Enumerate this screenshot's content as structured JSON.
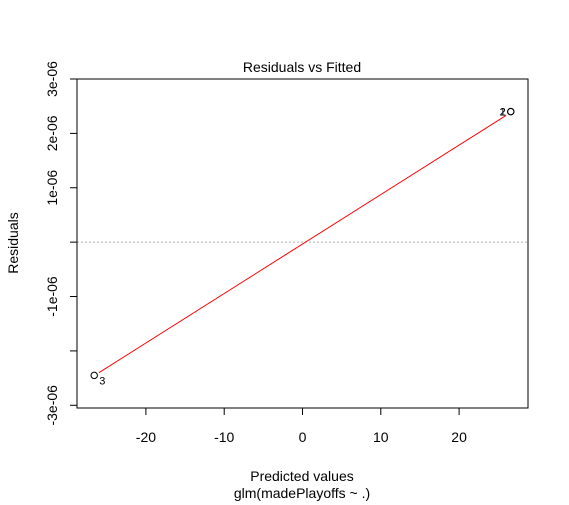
{
  "chart_data": {
    "type": "scatter",
    "title": "Residuals vs Fitted",
    "xlabel": "Predicted values",
    "subtitle": "glm(madePlayoffs ~ .)",
    "ylabel": "Residuals",
    "xlim": [
      -28.8,
      28.8
    ],
    "ylim": [
      -3.05e-06,
      3e-06
    ],
    "x_ticks": [
      -20,
      -10,
      0,
      10,
      20
    ],
    "x_tick_labels": [
      "-20",
      "-10",
      "0",
      "10",
      "20"
    ],
    "y_ticks": [
      -3e-06,
      -1e-06,
      1e-06,
      2e-06,
      3e-06
    ],
    "y_tick_labels": [
      "-3e-06",
      "-1e-06",
      "1e-06",
      "2e-06",
      "3e-06"
    ],
    "y_tick_marks": [
      -3e-06,
      -2e-06,
      -1e-06,
      0,
      1e-06,
      2e-06,
      3e-06
    ],
    "points": [
      {
        "x": -26.6,
        "y": -2.45e-06,
        "label": "3"
      },
      {
        "x": 26.6,
        "y": 2.4e-06,
        "label": "1"
      },
      {
        "x": 26.6,
        "y": 2.4e-06,
        "label": "2"
      }
    ],
    "smooth_line": {
      "x": [
        -26.0,
        26.0
      ],
      "y": [
        -2.4e-06,
        2.33e-06
      ],
      "color": "#ff0000"
    },
    "reference_line": {
      "y": 0,
      "color": "#b0b0b0"
    }
  }
}
